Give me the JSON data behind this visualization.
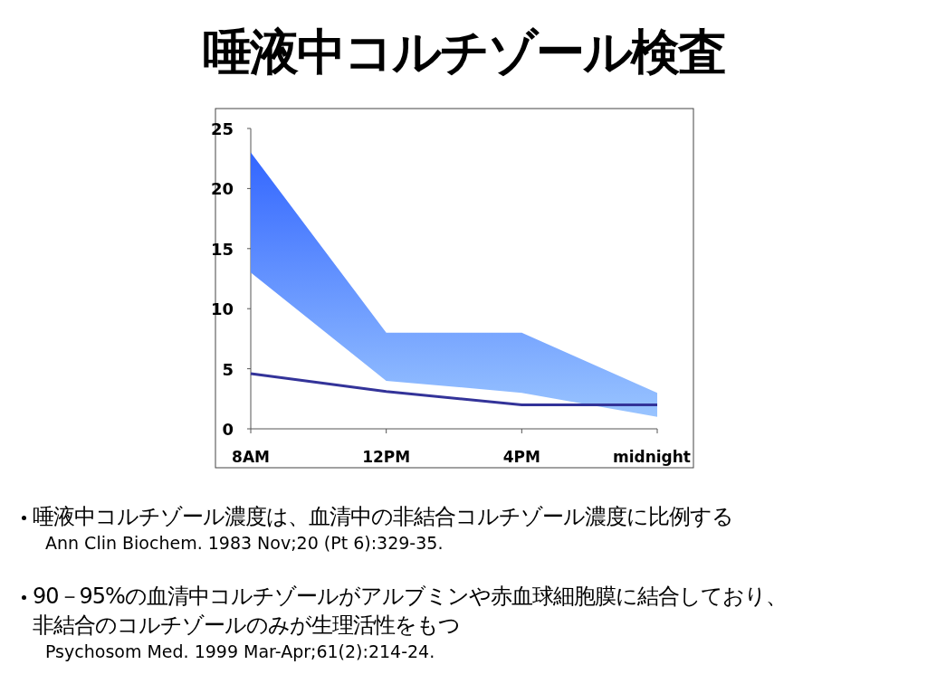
{
  "chart_data": {
    "type": "line",
    "title": "唾液中コルチゾール検査",
    "categories": [
      "8AM",
      "12PM",
      "4PM",
      "midnight"
    ],
    "series": [
      {
        "color": "#333399",
        "values": [
          4.6,
          3.1,
          2,
          2
        ],
        "lower": [
          13,
          4,
          3,
          1
        ],
        "upper": [
          23,
          8,
          8,
          3
        ]
      }
    ],
    "ylim": [
      0,
      25
    ],
    "yticks": [
      0,
      5,
      10,
      15,
      20,
      25
    ],
    "grid": false,
    "marker": "none",
    "annotations": [
      "唾液中コルチゾール濃度は、血清中の非結合コルチゾール濃度に比例する",
      "Ann Clin Biochem. 1983 Nov;20 (Pt 6):329-35.",
      "90－95%の血清中コルチゾールがアルブミンや赤血球細胞膜に結合しており、非結合のコルチゾールのみが生理活性をもつ",
      "Psychosom Med. 1999 Mar-Apr;61(2):214-24."
    ]
  }
}
